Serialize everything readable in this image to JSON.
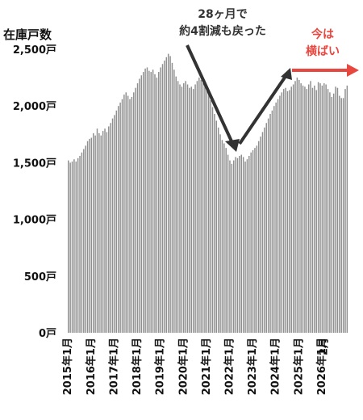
{
  "chart_data": {
    "type": "bar",
    "ylabel": "在庫戸数",
    "ylim": [
      0,
      2500
    ],
    "yticks": [
      {
        "value": 0,
        "label": "0戸"
      },
      {
        "value": 500,
        "label": "500戸"
      },
      {
        "value": 1000,
        "label": "1,000戸"
      },
      {
        "value": 1500,
        "label": "1,500戸"
      },
      {
        "value": 2000,
        "label": "2,000戸"
      },
      {
        "value": 2500,
        "label": "2,500戸"
      }
    ],
    "xticks": [
      "2015年1月",
      "2016年1月",
      "2017年1月",
      "2018年1月",
      "2019年1月",
      "2020年1月",
      "2021年1月",
      "2022年1月",
      "2023年1月",
      "2024年1月",
      "2025年1月",
      "2026年1月",
      "2月"
    ],
    "grid": false,
    "bar_color": "#8f8f8f",
    "start_month": "2015年1月",
    "end_month": "2026年2月",
    "values": [
      1520,
      1500,
      1510,
      1530,
      1510,
      1540,
      1560,
      1590,
      1620,
      1650,
      1690,
      1710,
      1720,
      1760,
      1740,
      1800,
      1760,
      1740,
      1780,
      1800,
      1770,
      1820,
      1850,
      1890,
      1920,
      1960,
      2000,
      2030,
      2060,
      2100,
      2120,
      2090,
      2060,
      2080,
      2120,
      2160,
      2200,
      2240,
      2270,
      2300,
      2330,
      2340,
      2310,
      2300,
      2320,
      2280,
      2250,
      2300,
      2340,
      2370,
      2400,
      2430,
      2460,
      2440,
      2380,
      2320,
      2260,
      2220,
      2190,
      2170,
      2200,
      2220,
      2190,
      2160,
      2170,
      2150,
      2190,
      2220,
      2250,
      2230,
      2200,
      2180,
      2150,
      2100,
      2050,
      1990,
      1930,
      1870,
      1810,
      1750,
      1700,
      1670,
      1630,
      1570,
      1520,
      1490,
      1520,
      1550,
      1540,
      1560,
      1570,
      1550,
      1510,
      1530,
      1560,
      1590,
      1610,
      1630,
      1650,
      1690,
      1730,
      1770,
      1810,
      1850,
      1890,
      1930,
      1960,
      2000,
      2030,
      2060,
      2090,
      2120,
      2150,
      2160,
      2130,
      2140,
      2170,
      2190,
      2220,
      2250,
      2230,
      2200,
      2180,
      2170,
      2150,
      2190,
      2220,
      2160,
      2180,
      2140,
      2210,
      2200,
      2180,
      2200,
      2190,
      2150,
      2120,
      2080,
      2110,
      2170,
      2160,
      2090,
      2070,
      2070,
      2150,
      2180
    ],
    "annotations": [
      {
        "lines": [
          "28ヶ月で",
          "約4割減も戻った"
        ],
        "color": "#333333"
      },
      {
        "lines": [
          "今は",
          "横ばい"
        ],
        "color": "#e8473f"
      }
    ],
    "arrow_color": "#333333",
    "trend_arrow_color": "#e8473f"
  }
}
